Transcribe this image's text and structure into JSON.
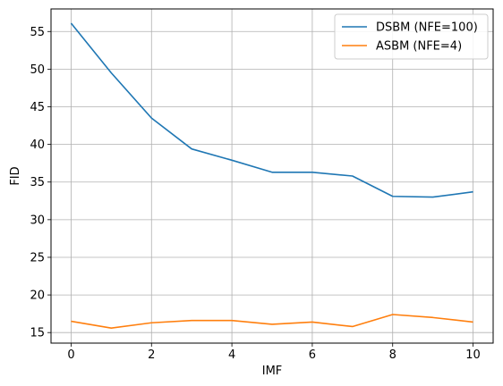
{
  "chart_data": {
    "type": "line",
    "title": "",
    "xlabel": "IMF",
    "ylabel": "FID",
    "x": [
      0,
      1,
      2,
      3,
      4,
      5,
      6,
      7,
      8,
      9,
      10
    ],
    "xlim": [
      -0.5,
      10.5
    ],
    "ylim": [
      13.6,
      58.0
    ],
    "xticks": [
      0,
      2,
      4,
      6,
      8,
      10
    ],
    "yticks": [
      15,
      20,
      25,
      30,
      35,
      40,
      45,
      50,
      55
    ],
    "grid": true,
    "legend_position": "top-right",
    "series": [
      {
        "name": "DSBM (NFE=100)",
        "color": "#1f77b4",
        "values": [
          56.1,
          49.5,
          43.5,
          39.4,
          37.9,
          36.3,
          36.3,
          35.8,
          33.1,
          33.0,
          33.7
        ]
      },
      {
        "name": "ASBM (NFE=4)",
        "color": "#ff7f0e",
        "values": [
          16.5,
          15.6,
          16.3,
          16.6,
          16.6,
          16.1,
          16.4,
          15.8,
          17.4,
          17.0,
          16.4
        ]
      }
    ]
  }
}
